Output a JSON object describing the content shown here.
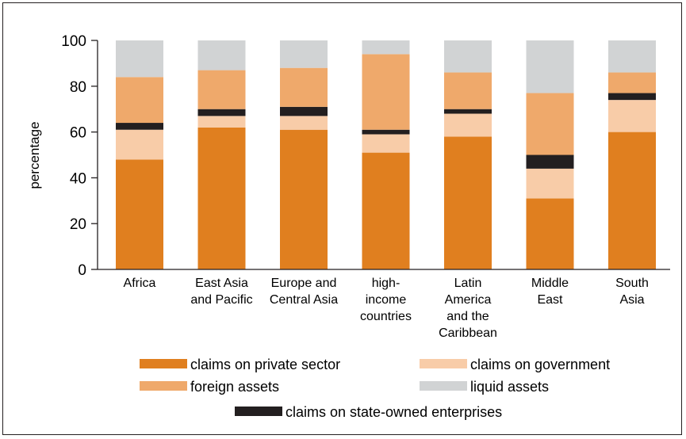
{
  "chart_data": {
    "type": "bar",
    "stacked": true,
    "ylabel": "percentage",
    "ylim": [
      0,
      100
    ],
    "yticks": [
      0,
      20,
      40,
      60,
      80,
      100
    ],
    "categories": [
      [
        "Africa"
      ],
      [
        "East Asia",
        "and Pacific"
      ],
      [
        "Europe and",
        "Central Asia"
      ],
      [
        "high-",
        "income",
        "countries"
      ],
      [
        "Latin",
        "America",
        "and the",
        "Caribbean"
      ],
      [
        "Middle",
        "East"
      ],
      [
        "South",
        "Asia"
      ]
    ],
    "series": [
      {
        "name": "claims on private sector",
        "color": "#e07f1f",
        "values": [
          48,
          62,
          61,
          51,
          58,
          31,
          60
        ]
      },
      {
        "name": "claims on government",
        "color": "#f8cca8",
        "values": [
          13,
          5,
          6,
          8,
          10,
          13,
          14
        ]
      },
      {
        "name": "claims on state-owned enterprises",
        "color": "#231f20",
        "values": [
          3,
          3,
          4,
          2,
          2,
          6,
          3
        ]
      },
      {
        "name": "foreign assets",
        "color": "#efa96b",
        "values": [
          20,
          17,
          17,
          33,
          16,
          27,
          9
        ]
      },
      {
        "name": "liquid assets",
        "color": "#d1d3d4",
        "values": [
          16,
          13,
          12,
          6,
          14,
          23,
          14
        ]
      }
    ],
    "legend_order": [
      0,
      1,
      3,
      4,
      2
    ],
    "grid": false,
    "legend_position": "bottom"
  }
}
